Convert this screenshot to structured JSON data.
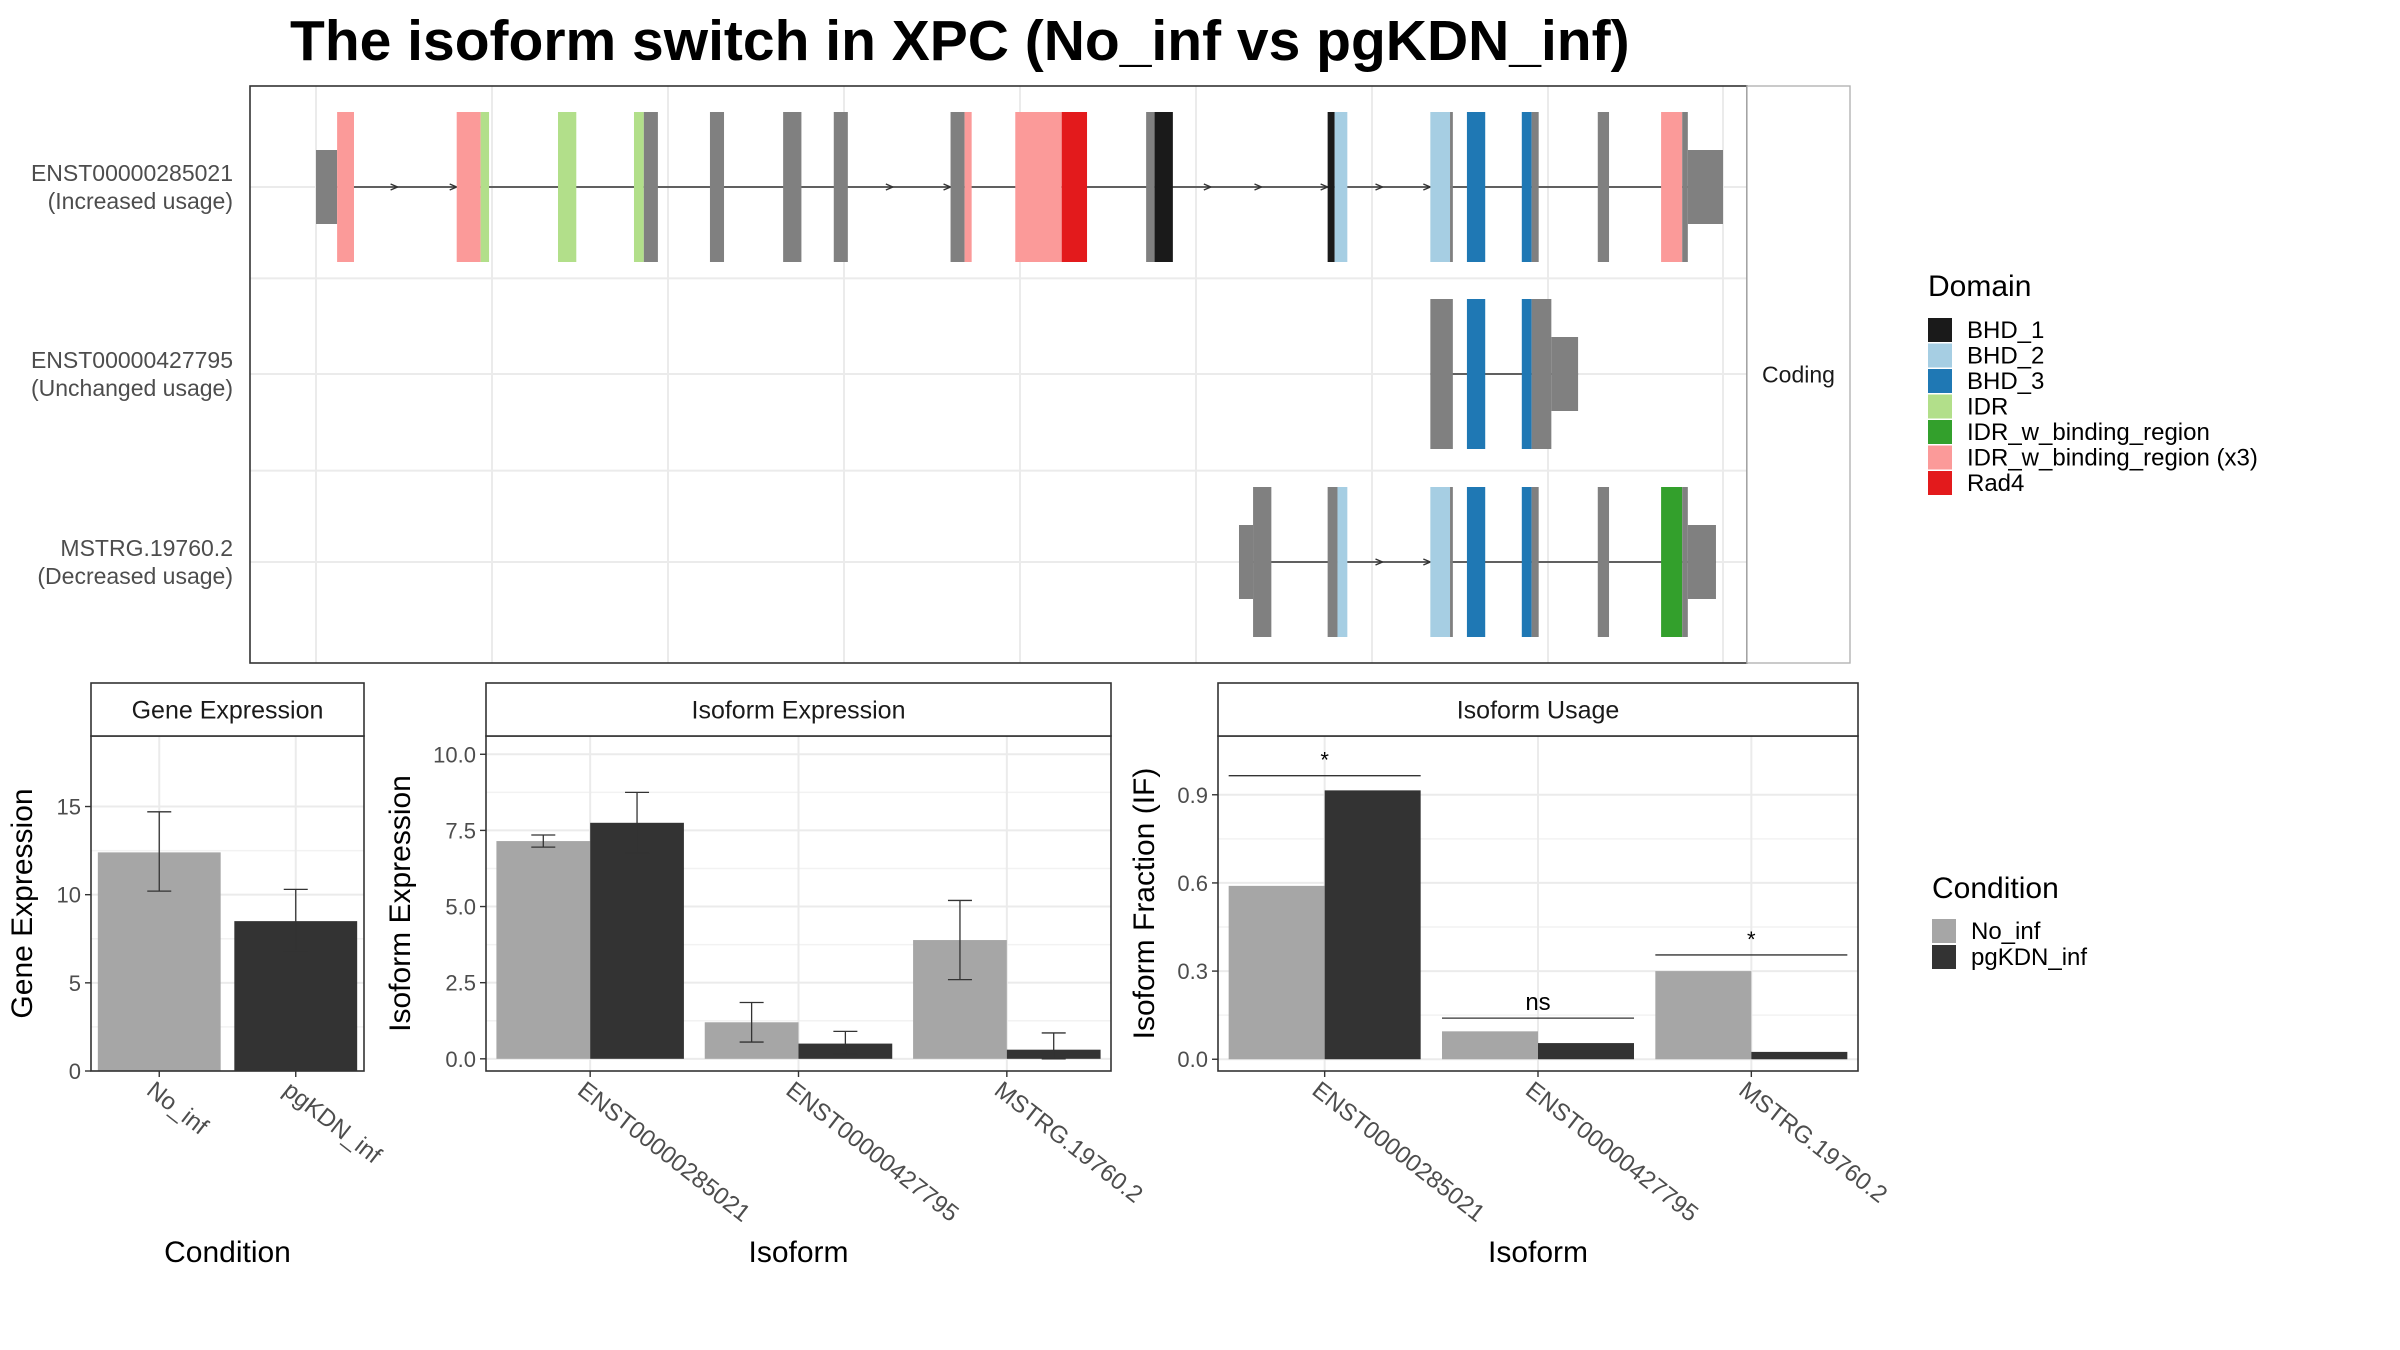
{
  "title": "The isoform switch in XPC (No_inf vs pgKDN_inf)",
  "colors": {
    "BHD_1": "#1a1a1a",
    "BHD_2": "#a6cee3",
    "BHD_3": "#1f78b4",
    "IDR": "#b2df8a",
    "IDR_w_binding_region": "#33a02c",
    "IDR_w_binding_region (x3)": "#fb9a99",
    "Rad4": "#e31a1c",
    "none": "#808080",
    "No_inf": "#a6a6a6",
    "pgKDN_inf": "#333333"
  },
  "structure": {
    "facet_label": "Coding",
    "isoforms": [
      {
        "id": "ENST00000285021",
        "usage": "(Increased usage)",
        "exons": [
          {
            "s": 0.0,
            "e": 0.015,
            "d": "none",
            "thin": true
          },
          {
            "s": 0.015,
            "e": 0.027,
            "d": "IDR_w_binding_region (x3)"
          },
          {
            "s": 0.1,
            "e": 0.117,
            "d": "IDR_w_binding_region (x3)"
          },
          {
            "s": 0.117,
            "e": 0.123,
            "d": "IDR"
          },
          {
            "s": 0.172,
            "e": 0.185,
            "d": "IDR"
          },
          {
            "s": 0.226,
            "e": 0.233,
            "d": "IDR"
          },
          {
            "s": 0.233,
            "e": 0.243,
            "d": "none"
          },
          {
            "s": 0.28,
            "e": 0.29,
            "d": "none"
          },
          {
            "s": 0.332,
            "e": 0.345,
            "d": "none"
          },
          {
            "s": 0.368,
            "e": 0.378,
            "d": "none"
          },
          {
            "s": 0.451,
            "e": 0.461,
            "d": "none"
          },
          {
            "s": 0.461,
            "e": 0.466,
            "d": "IDR_w_binding_region (x3)"
          },
          {
            "s": 0.497,
            "e": 0.53,
            "d": "IDR_w_binding_region (x3)"
          },
          {
            "s": 0.53,
            "e": 0.548,
            "d": "Rad4"
          },
          {
            "s": 0.59,
            "e": 0.596,
            "d": "none"
          },
          {
            "s": 0.596,
            "e": 0.609,
            "d": "BHD_1"
          },
          {
            "s": 0.719,
            "e": 0.724,
            "d": "BHD_1"
          },
          {
            "s": 0.724,
            "e": 0.733,
            "d": "BHD_2"
          },
          {
            "s": 0.792,
            "e": 0.806,
            "d": "BHD_2"
          },
          {
            "s": 0.806,
            "e": 0.808,
            "d": "none"
          },
          {
            "s": 0.818,
            "e": 0.831,
            "d": "BHD_3"
          },
          {
            "s": 0.857,
            "e": 0.864,
            "d": "BHD_3"
          },
          {
            "s": 0.864,
            "e": 0.869,
            "d": "none"
          },
          {
            "s": 0.911,
            "e": 0.919,
            "d": "none"
          },
          {
            "s": 0.956,
            "e": 0.971,
            "d": "IDR_w_binding_region (x3)"
          },
          {
            "s": 0.971,
            "e": 0.975,
            "d": "none"
          },
          {
            "s": 0.975,
            "e": 1.0,
            "d": "none",
            "thin": true
          }
        ],
        "arrows": [
          0.058,
          0.1,
          0.41,
          0.451,
          0.636,
          0.672,
          0.719,
          0.758,
          0.792
        ]
      },
      {
        "id": "ENST00000427795",
        "usage": "(Unchanged usage)",
        "exons": [
          {
            "s": 0.792,
            "e": 0.808,
            "d": "none"
          },
          {
            "s": 0.818,
            "e": 0.831,
            "d": "BHD_3"
          },
          {
            "s": 0.857,
            "e": 0.864,
            "d": "BHD_3"
          },
          {
            "s": 0.864,
            "e": 0.878,
            "d": "none"
          },
          {
            "s": 0.878,
            "e": 0.897,
            "d": "none",
            "thin": true
          }
        ],
        "arrows": []
      },
      {
        "id": "MSTRG.19760.2",
        "usage": "(Decreased usage)",
        "exons": [
          {
            "s": 0.656,
            "e": 0.666,
            "d": "none",
            "thin": true
          },
          {
            "s": 0.666,
            "e": 0.679,
            "d": "none"
          },
          {
            "s": 0.719,
            "e": 0.726,
            "d": "none"
          },
          {
            "s": 0.726,
            "e": 0.733,
            "d": "BHD_2"
          },
          {
            "s": 0.792,
            "e": 0.806,
            "d": "BHD_2"
          },
          {
            "s": 0.806,
            "e": 0.808,
            "d": "none"
          },
          {
            "s": 0.818,
            "e": 0.831,
            "d": "BHD_3"
          },
          {
            "s": 0.857,
            "e": 0.864,
            "d": "BHD_3"
          },
          {
            "s": 0.864,
            "e": 0.869,
            "d": "none"
          },
          {
            "s": 0.911,
            "e": 0.919,
            "d": "none"
          },
          {
            "s": 0.956,
            "e": 0.971,
            "d": "IDR_w_binding_region"
          },
          {
            "s": 0.971,
            "e": 0.975,
            "d": "none"
          },
          {
            "s": 0.975,
            "e": 0.995,
            "d": "none",
            "thin": true
          }
        ],
        "arrows": [
          0.758,
          0.792
        ]
      }
    ]
  },
  "legends": {
    "domain": {
      "title": "Domain",
      "items": [
        "BHD_1",
        "BHD_2",
        "BHD_3",
        "IDR",
        "IDR_w_binding_region",
        "IDR_w_binding_region (x3)",
        "Rad4"
      ]
    },
    "condition": {
      "title": "Condition",
      "items": [
        "No_inf",
        "pgKDN_inf"
      ]
    }
  },
  "chart_data": [
    {
      "type": "bar",
      "title": "Gene Expression",
      "xlabel": "Condition",
      "ylabel": "Gene Expression",
      "categories": [
        "No_inf",
        "pgKDN_inf"
      ],
      "values": [
        12.4,
        8.5
      ],
      "error_low": [
        10.2,
        6.8
      ],
      "error_high": [
        14.7,
        10.3
      ],
      "ylim": [
        0,
        19.0
      ],
      "yticks": [
        0,
        5,
        10,
        15
      ],
      "yticklabels": [
        "0",
        "5",
        "10",
        "15"
      ]
    },
    {
      "type": "bar",
      "title": "Isoform Expression",
      "xlabel": "Isoform",
      "ylabel": "Isoform Expression",
      "categories": [
        "ENST00000285021",
        "ENST00000427795",
        "MSTRG.19760.2"
      ],
      "series": [
        {
          "name": "No_inf",
          "values": [
            7.15,
            1.2,
            3.9
          ],
          "error_low": [
            6.95,
            0.55,
            2.6
          ],
          "error_high": [
            7.35,
            1.85,
            5.2
          ]
        },
        {
          "name": "pgKDN_inf",
          "values": [
            7.75,
            0.5,
            0.3
          ],
          "error_low": [
            6.75,
            0.15,
            0.0
          ],
          "error_high": [
            8.75,
            0.9,
            0.85
          ]
        }
      ],
      "ylim": [
        -0.4,
        10.6
      ],
      "yticks": [
        0,
        2.5,
        5,
        7.5,
        10
      ],
      "yticklabels": [
        "0.0",
        "2.5",
        "5.0",
        "7.5",
        "10.0"
      ]
    },
    {
      "type": "bar",
      "title": "Isoform Usage",
      "xlabel": "Isoform",
      "ylabel": "Isoform Fraction (IF)",
      "categories": [
        "ENST00000285021",
        "ENST00000427795",
        "MSTRG.19760.2"
      ],
      "series": [
        {
          "name": "No_inf",
          "values": [
            0.59,
            0.095,
            0.3
          ]
        },
        {
          "name": "pgKDN_inf",
          "values": [
            0.915,
            0.055,
            0.025
          ]
        }
      ],
      "significance": [
        {
          "label": "*",
          "y": 0.965
        },
        {
          "label": "ns",
          "y": 0.14
        },
        {
          "label": "*",
          "y": 0.355
        }
      ],
      "ylim": [
        -0.04,
        1.1
      ],
      "yticks": [
        0,
        0.3,
        0.6,
        0.9
      ],
      "yticklabels": [
        "0.0",
        "0.3",
        "0.6",
        "0.9"
      ]
    }
  ]
}
